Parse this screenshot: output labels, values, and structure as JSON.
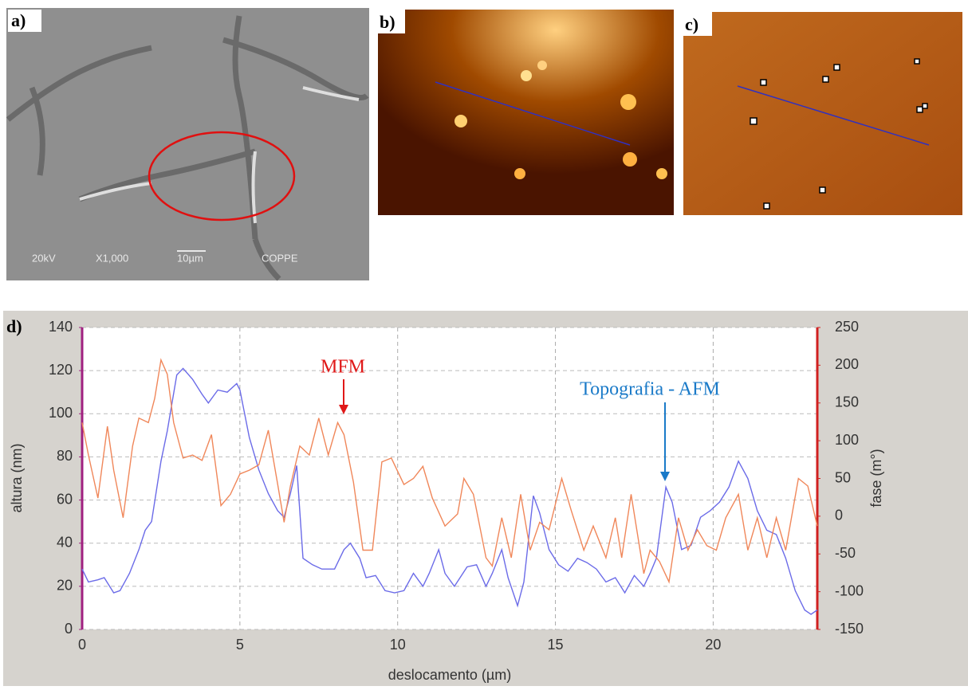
{
  "panels": {
    "a": {
      "label": "a)",
      "caption": [
        "20kV",
        "X1,000",
        "10µm",
        "COPPE"
      ]
    },
    "b": {
      "label": "b)"
    },
    "c": {
      "label": "c)"
    }
  },
  "chart_data": {
    "type": "line",
    "label": "d)",
    "x_label": "deslocamento (µm)",
    "y_label": "altura (nm)",
    "y2_label": "fase (m°)",
    "annotations": [
      "MFM",
      "Topografia - AFM"
    ],
    "xlim": [
      0,
      23.3
    ],
    "xticks": [
      0,
      5,
      10,
      15,
      20
    ],
    "ylim": [
      0,
      140
    ],
    "yticks": [
      0,
      20,
      40,
      60,
      80,
      100,
      120,
      140
    ],
    "y2lim": [
      -150,
      250
    ],
    "y2ticks": [
      -150,
      -100,
      -50,
      0,
      50,
      100,
      150,
      200,
      250
    ],
    "grid": true,
    "series": [
      {
        "name": "Topografia - AFM",
        "color": "#6b6be8",
        "axis": "y",
        "x": [
          0,
          0.2,
          0.5,
          0.7,
          1.0,
          1.2,
          1.5,
          1.8,
          2.0,
          2.2,
          2.5,
          2.7,
          3.0,
          3.2,
          3.5,
          3.8,
          4.0,
          4.3,
          4.6,
          4.9,
          5.0,
          5.3,
          5.6,
          5.9,
          6.2,
          6.4,
          6.6,
          6.8,
          7.0,
          7.3,
          7.6,
          8.0,
          8.3,
          8.5,
          8.8,
          9.0,
          9.3,
          9.6,
          9.9,
          10.2,
          10.5,
          10.8,
          11.0,
          11.3,
          11.5,
          11.8,
          12.2,
          12.5,
          12.8,
          13.0,
          13.3,
          13.5,
          13.8,
          14.0,
          14.3,
          14.5,
          14.8,
          15.1,
          15.4,
          15.7,
          16.0,
          16.3,
          16.6,
          16.9,
          17.2,
          17.5,
          17.8,
          18.0,
          18.2,
          18.5,
          18.7,
          19.0,
          19.3,
          19.6,
          19.9,
          20.2,
          20.5,
          20.8,
          21.1,
          21.4,
          21.7,
          22.0,
          22.3,
          22.6,
          22.9,
          23.1,
          23.3
        ],
        "values": [
          28,
          22,
          23,
          24,
          17,
          18,
          26,
          37,
          46,
          50,
          78,
          92,
          118,
          121,
          116,
          109,
          105,
          111,
          110,
          114,
          111,
          89,
          74,
          63,
          55,
          52,
          63,
          76,
          33,
          30,
          28,
          28,
          37,
          40,
          33,
          24,
          25,
          18,
          17,
          18,
          26,
          20,
          26,
          37,
          26,
          20,
          29,
          30,
          20,
          26,
          37,
          24,
          11,
          22,
          62,
          54,
          37,
          30,
          27,
          33,
          31,
          28,
          22,
          24,
          17,
          25,
          20,
          26,
          33,
          66,
          59,
          37,
          39,
          52,
          55,
          59,
          66,
          78,
          70,
          55,
          46,
          44,
          33,
          18,
          9,
          7,
          9
        ]
      },
      {
        "name": "MFM",
        "color": "#f0875a",
        "axis": "y2",
        "x": [
          0,
          0.2,
          0.5,
          0.8,
          1.0,
          1.3,
          1.6,
          1.8,
          2.1,
          2.3,
          2.5,
          2.7,
          2.9,
          3.2,
          3.5,
          3.8,
          4.1,
          4.4,
          4.7,
          5.0,
          5.3,
          5.6,
          5.9,
          6.2,
          6.4,
          6.6,
          6.9,
          7.2,
          7.5,
          7.8,
          8.1,
          8.3,
          8.6,
          8.9,
          9.2,
          9.5,
          9.8,
          10.2,
          10.5,
          10.8,
          11.1,
          11.5,
          11.9,
          12.1,
          12.4,
          12.8,
          13.0,
          13.3,
          13.6,
          13.9,
          14.2,
          14.5,
          14.8,
          15.2,
          15.5,
          15.9,
          16.2,
          16.6,
          16.9,
          17.1,
          17.4,
          17.8,
          18.0,
          18.3,
          18.6,
          18.9,
          19.2,
          19.5,
          19.8,
          20.1,
          20.4,
          20.8,
          21.1,
          21.4,
          21.7,
          22.0,
          22.3,
          22.7,
          23.0,
          23.3
        ],
        "values": [
          124,
          81,
          24,
          119,
          61,
          -2,
          93,
          130,
          124,
          156,
          207,
          188,
          124,
          77,
          81,
          74,
          108,
          14,
          29,
          56,
          61,
          68,
          114,
          42,
          -8,
          40,
          93,
          81,
          130,
          81,
          124,
          108,
          45,
          -45,
          -45,
          72,
          77,
          42,
          50,
          66,
          24,
          -13,
          3,
          50,
          29,
          -55,
          -66,
          -2,
          -55,
          29,
          -45,
          -8,
          -18,
          50,
          8,
          -45,
          -13,
          -55,
          -2,
          -55,
          29,
          -76,
          -45,
          -60,
          -87,
          -2,
          -45,
          -18,
          -39,
          -45,
          -2,
          29,
          -45,
          -2,
          -55,
          -2,
          -45,
          50,
          40,
          -13
        ]
      }
    ]
  }
}
